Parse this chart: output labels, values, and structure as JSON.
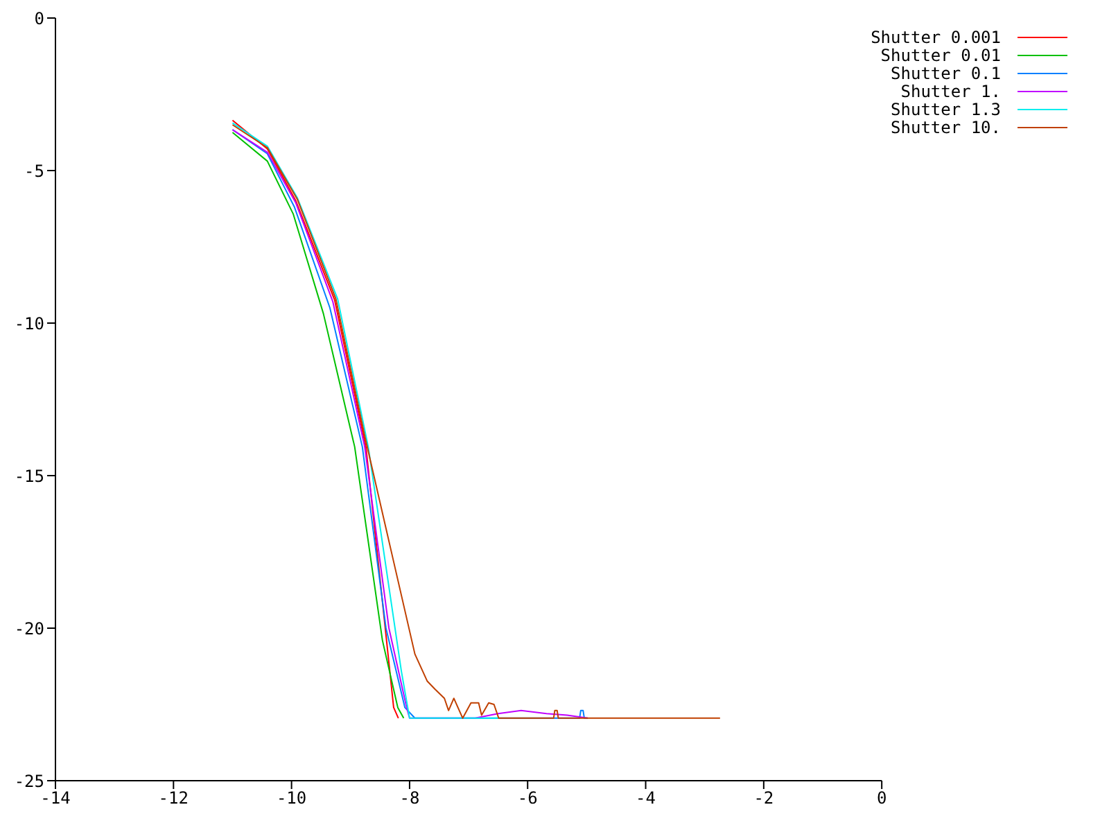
{
  "chart_data": {
    "type": "line",
    "xlim": [
      -14,
      0
    ],
    "xticks": [
      -14,
      -12,
      -10,
      -8,
      -6,
      -4,
      -2,
      0
    ],
    "ylim": [
      -25,
      0
    ],
    "yticks": [
      -25,
      -20,
      -15,
      -10,
      -5,
      0
    ],
    "grid": false,
    "legend": "top right",
    "marker": "none",
    "line_style": "solid",
    "series": [
      {
        "name": "Shutter 0.001",
        "color": "#ff0000",
        "x": [
          -11,
          -10.41,
          -9.93,
          -9.27,
          -8.74,
          -8.5,
          -8.27,
          -8.19
        ],
        "values": [
          -3.35,
          -4.29,
          -5.98,
          -9.24,
          -14.06,
          -18.4,
          -22.6,
          -22.95
        ]
      },
      {
        "name": "Shutter 0.01",
        "color": "#00c000",
        "x": [
          -11,
          -10.41,
          -9.97,
          -9.46,
          -8.93,
          -8.46,
          -8.2,
          -8.1
        ],
        "values": [
          -3.75,
          -4.69,
          -6.43,
          -9.69,
          -14.06,
          -20.4,
          -22.6,
          -22.95
        ]
      },
      {
        "name": "Shutter 0.1",
        "color": "#0080ff",
        "x": [
          -11,
          -10.41,
          -9.95,
          -9.35,
          -8.8,
          -8.4,
          -8.08,
          -7.91,
          -5.12,
          -5.1,
          -5.06,
          -5.04,
          -4.98
        ],
        "values": [
          -3.66,
          -4.45,
          -6.2,
          -9.5,
          -14.06,
          -20,
          -22.6,
          -22.95,
          -22.95,
          -22.7,
          -22.7,
          -22.95,
          -22.95
        ]
      },
      {
        "name": "Shutter 1.",
        "color": "#c000ff",
        "x": [
          -11,
          -10.41,
          -9.93,
          -9.3,
          -8.76,
          -8.35,
          -8.05,
          -8,
          -6.89,
          -6.5,
          -6.11,
          -5.68,
          -5.33,
          -4.98
        ],
        "values": [
          -3.66,
          -4.4,
          -6.05,
          -9.3,
          -14.06,
          -20,
          -22.6,
          -22.95,
          -22.95,
          -22.8,
          -22.7,
          -22.8,
          -22.85,
          -22.95
        ]
      },
      {
        "name": "Shutter 1.3",
        "color": "#00eeee",
        "x": [
          -11,
          -10.41,
          -9.9,
          -9.22,
          -8.7,
          -8.14,
          -8,
          -6.49
        ],
        "values": [
          -3.44,
          -4.2,
          -5.9,
          -9.2,
          -14.06,
          -21.4,
          -22.95,
          -22.95
        ]
      },
      {
        "name": "Shutter 10.",
        "color": "#c04000",
        "x": [
          -11,
          -10.41,
          -9.9,
          -9.25,
          -8.76,
          -8.32,
          -7.91,
          -7.7,
          -7.57,
          -7.41,
          -7.34,
          -7.25,
          -7.1,
          -6.96,
          -6.83,
          -6.78,
          -6.66,
          -6.57,
          -6.49,
          -5.56,
          -5.54,
          -5.5,
          -5.48,
          -2.74
        ],
        "values": [
          -3.5,
          -4.25,
          -5.95,
          -9.2,
          -13.7,
          -17.4,
          -20.85,
          -21.74,
          -22,
          -22.3,
          -22.7,
          -22.3,
          -22.95,
          -22.45,
          -22.45,
          -22.85,
          -22.45,
          -22.5,
          -22.95,
          -22.95,
          -22.7,
          -22.7,
          -22.95,
          -22.95
        ]
      }
    ]
  }
}
